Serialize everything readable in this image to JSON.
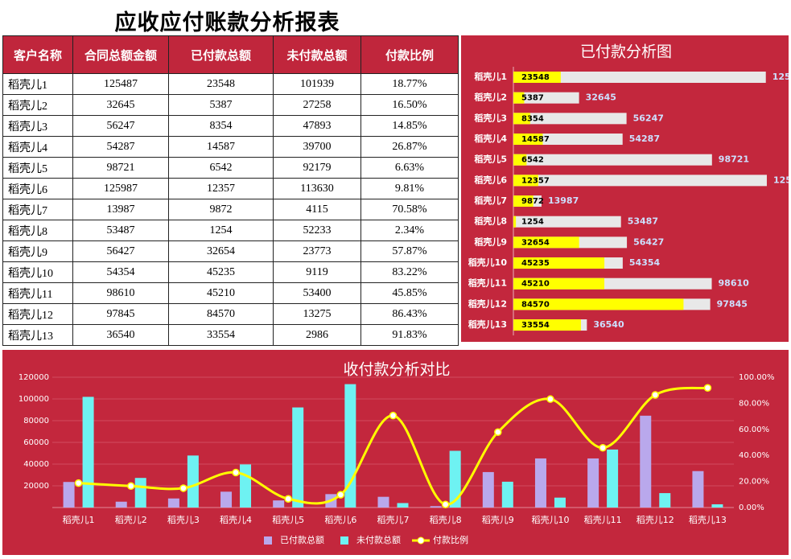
{
  "title": "应收应付账款分析报表",
  "table": {
    "headers": [
      "客户名称",
      "合同总额金额",
      "已付款总额",
      "未付款总额",
      "付款比例"
    ],
    "rows": [
      [
        "稻壳儿1",
        "125487",
        "23548",
        "101939",
        "18.77%"
      ],
      [
        "稻壳儿2",
        "32645",
        "5387",
        "27258",
        "16.50%"
      ],
      [
        "稻壳儿3",
        "56247",
        "8354",
        "47893",
        "14.85%"
      ],
      [
        "稻壳儿4",
        "54287",
        "14587",
        "39700",
        "26.87%"
      ],
      [
        "稻壳儿5",
        "98721",
        "6542",
        "92179",
        "6.63%"
      ],
      [
        "稻壳儿6",
        "125987",
        "12357",
        "113630",
        "9.81%"
      ],
      [
        "稻壳儿7",
        "13987",
        "9872",
        "4115",
        "70.58%"
      ],
      [
        "稻壳儿8",
        "53487",
        "1254",
        "52233",
        "2.34%"
      ],
      [
        "稻壳儿9",
        "56427",
        "32654",
        "23773",
        "57.87%"
      ],
      [
        "稻壳儿10",
        "54354",
        "45235",
        "9119",
        "83.22%"
      ],
      [
        "稻壳儿11",
        "98610",
        "45210",
        "53400",
        "45.85%"
      ],
      [
        "稻壳儿12",
        "97845",
        "84570",
        "13275",
        "86.43%"
      ],
      [
        "稻壳儿13",
        "36540",
        "33554",
        "2986",
        "91.83%"
      ]
    ]
  },
  "chart_data": [
    {
      "type": "hbar-overlap",
      "title": "已付款分析图",
      "categories": [
        "稻壳儿1",
        "稻壳儿2",
        "稻壳儿3",
        "稻壳儿4",
        "稻壳儿5",
        "稻壳儿6",
        "稻壳儿7",
        "稻壳儿8",
        "稻壳儿9",
        "稻壳儿10",
        "稻壳儿11",
        "稻壳儿12",
        "稻壳儿13"
      ],
      "xlim": [
        0,
        130000
      ],
      "series": [
        {
          "color": "#e8e8e8",
          "values": [
            125487,
            32645,
            56247,
            54287,
            98721,
            125987,
            13987,
            53487,
            56427,
            54354,
            98610,
            97845,
            36540
          ]
        },
        {
          "color": "#ffff00",
          "values": [
            23548,
            5387,
            8354,
            14587,
            6542,
            12357,
            9872,
            1254,
            32654,
            45235,
            45210,
            84570,
            33554
          ]
        }
      ]
    },
    {
      "type": "combo",
      "title": "收付款分析对比",
      "categories": [
        "稻壳儿1",
        "稻壳儿2",
        "稻壳儿3",
        "稻壳儿4",
        "稻壳儿5",
        "稻壳儿6",
        "稻壳儿7",
        "稻壳儿8",
        "稻壳儿9",
        "稻壳儿10",
        "稻壳儿11",
        "稻壳儿12",
        "稻壳儿13"
      ],
      "ylim": [
        0,
        120000
      ],
      "yticks": [
        20000,
        40000,
        60000,
        80000,
        100000,
        120000
      ],
      "y2lim": [
        0,
        100
      ],
      "y2ticks": [
        {
          "value": 0,
          "label": "0.00%"
        },
        {
          "value": 20,
          "label": "20.00%"
        },
        {
          "value": 40,
          "label": "40.00%"
        },
        {
          "value": 60,
          "label": "60.00%"
        },
        {
          "value": 80,
          "label": "80.00%"
        },
        {
          "value": 100,
          "label": "100.00%"
        }
      ],
      "grid": true,
      "series": [
        {
          "name": "已付款总额",
          "type": "bar",
          "color": "#b9a8ec",
          "values": [
            23548,
            5387,
            8354,
            14587,
            6542,
            12357,
            9872,
            1254,
            32654,
            45235,
            45210,
            84570,
            33554
          ]
        },
        {
          "name": "未付款总额",
          "type": "bar",
          "color": "#6ef2f2",
          "values": [
            101939,
            27258,
            47893,
            39700,
            92179,
            113630,
            4115,
            52233,
            23773,
            9119,
            53400,
            13275,
            2986
          ]
        },
        {
          "name": "付款比例",
          "type": "line",
          "axis": "y2",
          "color": "#ffff00",
          "values": [
            18.77,
            16.5,
            14.85,
            26.87,
            6.63,
            9.81,
            70.58,
            2.34,
            57.87,
            83.22,
            45.85,
            86.43,
            91.83
          ]
        }
      ]
    }
  ]
}
